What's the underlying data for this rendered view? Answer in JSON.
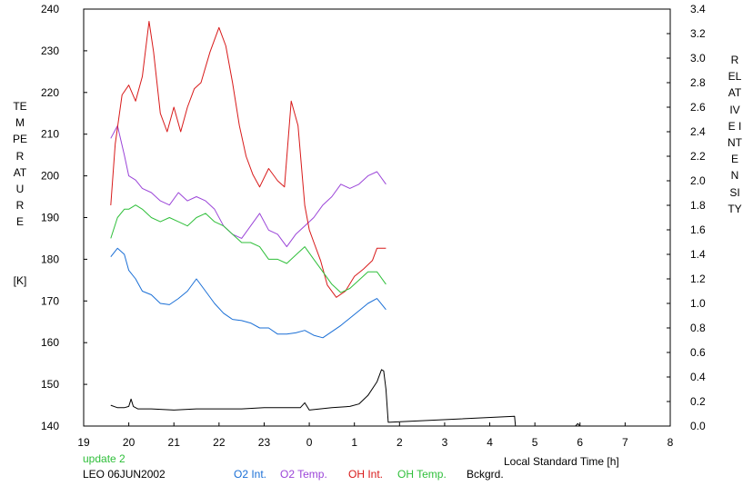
{
  "chart_data": {
    "type": "line",
    "y_left_label": "TEMPERATURE",
    "y_left_unit": "[K]",
    "y_right_label": "RELATIVE  INTENSITY",
    "x_label": "Local Standard Time [h]",
    "y_left_range": [
      140,
      240
    ],
    "y_right_range": [
      0.0,
      3.4
    ],
    "x_range": [
      19,
      32
    ],
    "x_ticks": [
      19,
      20,
      21,
      22,
      23,
      24,
      25,
      26,
      27,
      28,
      29,
      30,
      31,
      32
    ],
    "x_tick_labels": [
      "19",
      "20",
      "21",
      "22",
      "23",
      "0",
      "1",
      "2",
      "3",
      "4",
      "5",
      "6",
      "7",
      "8"
    ],
    "y_left_ticks": [
      "140",
      "150",
      "160",
      "170",
      "180",
      "190",
      "200",
      "210",
      "220",
      "230",
      "240"
    ],
    "y_right_ticks": [
      "0.0",
      "0.2",
      "0.4",
      "0.6",
      "0.8",
      "1.0",
      "1.2",
      "1.4",
      "1.6",
      "1.8",
      "2.0",
      "2.2",
      "2.4",
      "2.6",
      "2.8",
      "3.0",
      "3.2",
      "3.4"
    ],
    "grid": false,
    "legend_position": "bottom",
    "series": [
      {
        "name": "O2 Int.",
        "axis": "right",
        "color": "#1a6fd6",
        "x": [
          19.6,
          19.75,
          19.9,
          20.0,
          20.15,
          20.3,
          20.5,
          20.7,
          20.9,
          21.1,
          21.3,
          21.5,
          21.7,
          21.9,
          22.1,
          22.3,
          22.5,
          22.7,
          22.9,
          23.1,
          23.3,
          23.5,
          23.7,
          23.9,
          24.1,
          24.3,
          24.5,
          24.7,
          24.9,
          25.1,
          25.3,
          25.5,
          25.7
        ],
        "y": [
          1.38,
          1.45,
          1.4,
          1.27,
          1.2,
          1.1,
          1.07,
          1.0,
          0.99,
          1.04,
          1.1,
          1.2,
          1.1,
          1.0,
          0.92,
          0.87,
          0.86,
          0.84,
          0.8,
          0.8,
          0.75,
          0.75,
          0.76,
          0.78,
          0.74,
          0.72,
          0.77,
          0.82,
          0.88,
          0.94,
          1.0,
          1.04,
          0.95
        ]
      },
      {
        "name": "O2 Temp.",
        "axis": "left",
        "color": "#9b45d8",
        "x": [
          19.6,
          19.75,
          19.9,
          20.0,
          20.15,
          20.3,
          20.5,
          20.7,
          20.9,
          21.1,
          21.3,
          21.5,
          21.7,
          21.9,
          22.1,
          22.3,
          22.5,
          22.7,
          22.9,
          23.1,
          23.3,
          23.5,
          23.7,
          23.9,
          24.1,
          24.3,
          24.5,
          24.7,
          24.9,
          25.1,
          25.3,
          25.5,
          25.7
        ],
        "y": [
          209,
          212,
          205,
          200,
          199,
          197,
          196,
          194,
          193,
          196,
          194,
          195,
          194,
          192,
          188,
          186,
          185,
          188,
          191,
          187,
          186,
          183,
          186,
          188,
          190,
          193,
          195,
          198,
          197,
          198,
          200,
          201,
          198
        ]
      },
      {
        "name": "OH Int.",
        "axis": "right",
        "color": "#d81a1a",
        "x": [
          19.6,
          19.7,
          19.85,
          20.0,
          20.15,
          20.3,
          20.45,
          20.55,
          20.7,
          20.85,
          21.0,
          21.15,
          21.3,
          21.45,
          21.6,
          21.8,
          22.0,
          22.15,
          22.3,
          22.45,
          22.6,
          22.75,
          22.9,
          23.1,
          23.3,
          23.45,
          23.6,
          23.75,
          23.9,
          24.0,
          24.1,
          24.25,
          24.4,
          24.6,
          24.8,
          25.0,
          25.2,
          25.4,
          25.5,
          25.7
        ],
        "y": [
          1.8,
          2.3,
          2.7,
          2.78,
          2.65,
          2.85,
          3.3,
          3.05,
          2.55,
          2.4,
          2.6,
          2.4,
          2.6,
          2.75,
          2.8,
          3.05,
          3.25,
          3.1,
          2.8,
          2.45,
          2.2,
          2.05,
          1.95,
          2.1,
          2.0,
          1.95,
          2.65,
          2.45,
          1.8,
          1.6,
          1.5,
          1.35,
          1.15,
          1.05,
          1.1,
          1.22,
          1.28,
          1.35,
          1.45,
          1.45
        ]
      },
      {
        "name": "OH Temp.",
        "axis": "left",
        "color": "#2fbf3a",
        "x": [
          19.6,
          19.75,
          19.9,
          20.0,
          20.15,
          20.3,
          20.5,
          20.7,
          20.9,
          21.1,
          21.3,
          21.5,
          21.7,
          21.9,
          22.1,
          22.3,
          22.5,
          22.7,
          22.9,
          23.1,
          23.3,
          23.5,
          23.7,
          23.9,
          24.1,
          24.3,
          24.5,
          24.7,
          24.9,
          25.1,
          25.3,
          25.5,
          25.7
        ],
        "y": [
          185,
          190,
          192,
          192,
          193,
          192,
          190,
          189,
          190,
          189,
          188,
          190,
          191,
          189,
          188,
          186,
          184,
          184,
          183,
          180,
          180,
          179,
          181,
          183,
          180,
          177,
          174,
          172,
          173,
          175,
          177,
          177,
          174
        ]
      },
      {
        "name": "Bckgrd.",
        "axis": "right",
        "color": "#000000",
        "x": [
          19.6,
          19.75,
          19.9,
          20.0,
          20.05,
          20.1,
          20.2,
          20.5,
          21.0,
          21.5,
          22.0,
          22.5,
          23.0,
          23.5,
          23.8,
          23.9,
          24.0,
          24.5,
          24.9,
          25.1,
          25.3,
          25.5,
          25.6,
          25.65,
          25.7,
          25.75,
          28.55,
          28.57,
          28.6,
          29.9,
          29.95,
          30.0
        ],
        "y": [
          0.17,
          0.15,
          0.15,
          0.16,
          0.22,
          0.16,
          0.14,
          0.14,
          0.13,
          0.14,
          0.14,
          0.14,
          0.15,
          0.15,
          0.15,
          0.19,
          0.13,
          0.15,
          0.16,
          0.18,
          0.25,
          0.36,
          0.46,
          0.45,
          0.3,
          0.03,
          0.08,
          0.0,
          0.0,
          0.0,
          0.02,
          0.0
        ]
      }
    ]
  },
  "footer": {
    "status_text": "update 2",
    "station_date": "LEO 06JUN2002",
    "legend": [
      "O2 Int.",
      "O2 Temp.",
      "OH Int.",
      "OH Temp.",
      "Bckgrd."
    ]
  },
  "colors": {
    "o2_int": "#1a6fd6",
    "o2_temp": "#9b45d8",
    "oh_int": "#d81a1a",
    "oh_temp": "#2fbf3a",
    "bckgrd": "#000000",
    "status": "#2fbf3a"
  }
}
